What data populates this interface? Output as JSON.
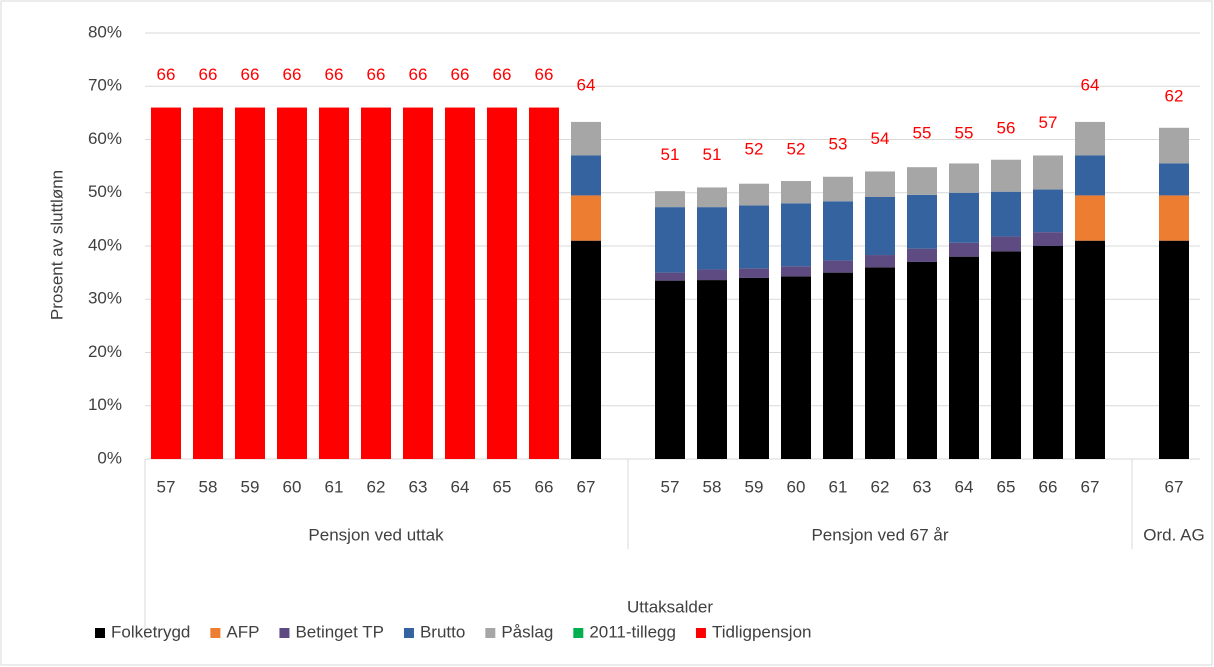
{
  "chart_data": {
    "type": "stacked_bar",
    "y_label": "Prosent av sluttlønn",
    "x_label": "Uttaksalder",
    "groups": [
      {
        "name": "Pensjon ved uttak",
        "categories": [
          "57",
          "58",
          "59",
          "60",
          "61",
          "62",
          "63",
          "64",
          "65",
          "66",
          "67"
        ]
      },
      {
        "name": "Pensjon ved 67 år",
        "categories": [
          "57",
          "58",
          "59",
          "60",
          "61",
          "62",
          "63",
          "64",
          "65",
          "66",
          "67"
        ]
      },
      {
        "name": "Ord. AG",
        "categories": [
          "67"
        ]
      }
    ],
    "series": [
      {
        "name": "Folketrygd",
        "color": "#000000",
        "values": [
          0,
          0,
          0,
          0,
          0,
          0,
          0,
          0,
          0,
          0,
          41,
          33.5,
          33.6,
          34,
          34.3,
          35,
          36,
          37,
          38,
          39,
          40,
          41,
          41
        ]
      },
      {
        "name": "AFP",
        "color": "#ed7d31",
        "values": [
          0,
          0,
          0,
          0,
          0,
          0,
          0,
          0,
          0,
          0,
          8.5,
          0,
          0,
          0,
          0,
          0,
          0,
          0,
          0,
          0,
          0,
          8.5,
          8.5
        ]
      },
      {
        "name": "Betinget TP",
        "color": "#5e4b82",
        "values": [
          0,
          0,
          0,
          0,
          0,
          0,
          0,
          0,
          0,
          0,
          0,
          1.5,
          2,
          1.8,
          1.9,
          2.3,
          2.3,
          2.5,
          2.6,
          2.8,
          2.6,
          0,
          0
        ]
      },
      {
        "name": "Brutto",
        "color": "#3563a0",
        "values": [
          0,
          0,
          0,
          0,
          0,
          0,
          0,
          0,
          0,
          0,
          7.5,
          12.3,
          11.7,
          11.8,
          11.8,
          11.1,
          10.9,
          10.1,
          9.4,
          8.4,
          8,
          7.5,
          6
        ]
      },
      {
        "name": "Påslag",
        "color": "#a6a6a6",
        "values": [
          0,
          0,
          0,
          0,
          0,
          0,
          0,
          0,
          0,
          0,
          6.3,
          3,
          3.7,
          4.1,
          4.2,
          4.6,
          4.8,
          5.2,
          5.5,
          6,
          6.4,
          6.3,
          6.7
        ]
      },
      {
        "name": "2011-tillegg",
        "color": "#00b050",
        "values": [
          0,
          0,
          0,
          0,
          0,
          0,
          0,
          0,
          0,
          0,
          0,
          0,
          0,
          0,
          0,
          0,
          0,
          0,
          0,
          0,
          0,
          0,
          0
        ]
      },
      {
        "name": "Tidligpensjon",
        "color": "#ff0000",
        "values": [
          66,
          66,
          66,
          66,
          66,
          66,
          66,
          66,
          66,
          66,
          0,
          0,
          0,
          0,
          0,
          0,
          0,
          0,
          0,
          0,
          0,
          0,
          0
        ]
      }
    ],
    "totals": [
      66,
      66,
      66,
      66,
      66,
      66,
      66,
      66,
      66,
      66,
      64,
      51,
      51,
      52,
      52,
      53,
      54,
      55,
      55,
      56,
      57,
      64,
      62
    ],
    "totals_color": "#ff0000",
    "ylim": [
      0,
      80
    ],
    "yticks": [
      {
        "value": 0,
        "label": "0%"
      },
      {
        "value": 10,
        "label": "10%"
      },
      {
        "value": 20,
        "label": "20%"
      },
      {
        "value": 30,
        "label": "30%"
      },
      {
        "value": 40,
        "label": "40%"
      },
      {
        "value": 50,
        "label": "50%"
      },
      {
        "value": 60,
        "label": "60%"
      },
      {
        "value": 70,
        "label": "70%"
      },
      {
        "value": 80,
        "label": "80%"
      }
    ],
    "grid": true,
    "legend": "bottom"
  }
}
